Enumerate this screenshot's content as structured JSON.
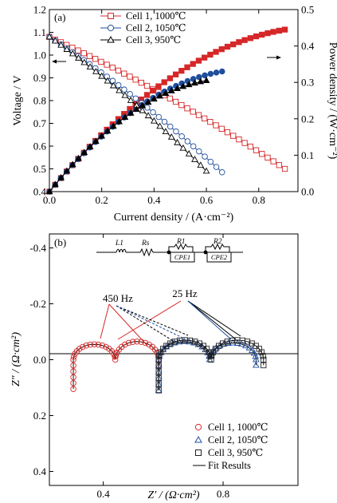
{
  "chart_data": [
    {
      "panel_label": "(a)",
      "type": "line",
      "xlabel": "Current density / (A·cm⁻²)",
      "ylabel_left": "Voltage / V",
      "ylabel_right": "Power density / (W·cm⁻²)",
      "xlim": [
        0,
        0.95
      ],
      "ylim_left": [
        0.4,
        1.2
      ],
      "ylim_right": [
        0,
        0.5
      ],
      "xticks": [
        "0.0",
        "0.2",
        "0.4",
        "0.6",
        "0.8"
      ],
      "yticks_left": [
        "0.4",
        "0.5",
        "0.6",
        "0.7",
        "0.8",
        "0.9",
        "1.0",
        "1.1",
        "1.2"
      ],
      "yticks_right": [
        "0.0",
        "0.1",
        "0.2",
        "0.3",
        "0.4",
        "0.5"
      ],
      "legend_position": "top-center",
      "series": [
        {
          "name": "Cell 1, 1000℃",
          "color": "#d62728",
          "marker": "square",
          "imax": 0.9,
          "voltage": {
            "v0": 1.08,
            "v_end": 0.5
          },
          "power_max": 0.445
        },
        {
          "name": "Cell 2, 1050℃",
          "color": "#1f4e9c",
          "marker": "circle",
          "imax": 0.66,
          "voltage": {
            "v0": 1.08,
            "v_end": 0.485
          },
          "power_max": 0.33
        },
        {
          "name": "Cell 3, 950℃",
          "color": "#000000",
          "marker": "triangle",
          "imax": 0.6,
          "voltage": {
            "v0": 1.08,
            "v_end": 0.49
          },
          "power_max": 0.305
        }
      ]
    },
    {
      "panel_label": "(b)",
      "type": "scatter",
      "xlabel": "Z′ / (Ω·cm²)",
      "ylabel": "Z″ / (Ω·cm²)",
      "xlim": [
        0.22,
        1.05
      ],
      "ylim": [
        0.45,
        -0.45
      ],
      "xticks": [
        "0.4",
        "0.8"
      ],
      "yticks": [
        "-0.4",
        "-0.2",
        "0.0",
        "0.2",
        "0.4"
      ],
      "circuit_labels": [
        "L1",
        "Rs",
        "R1",
        "CPE1",
        "R2",
        "CPE2"
      ],
      "annotations": [
        "450 Hz",
        "25 Hz"
      ],
      "legend_position": "bottom-right",
      "fit_label": "Fit Results",
      "series": [
        {
          "name": "Cell 1, 1000℃",
          "color": "#d62728",
          "marker": "circle",
          "Rs": 0.3,
          "R1": 0.14,
          "R2": 0.145,
          "Lmax": 0.105,
          "peak1": 0.055,
          "peak2": 0.065
        },
        {
          "name": "Cell 2, 1050℃",
          "color": "#1f4e9c",
          "marker": "triangle",
          "Rs": 0.585,
          "R1": 0.17,
          "R2": 0.155,
          "Lmax": 0.11,
          "peak1": 0.065,
          "peak2": 0.06
        },
        {
          "name": "Cell 3, 950℃",
          "color": "#222222",
          "marker": "square",
          "Rs": 0.585,
          "R1": 0.175,
          "R2": 0.175,
          "Lmax": 0.11,
          "peak1": 0.07,
          "peak2": 0.07
        }
      ]
    }
  ]
}
